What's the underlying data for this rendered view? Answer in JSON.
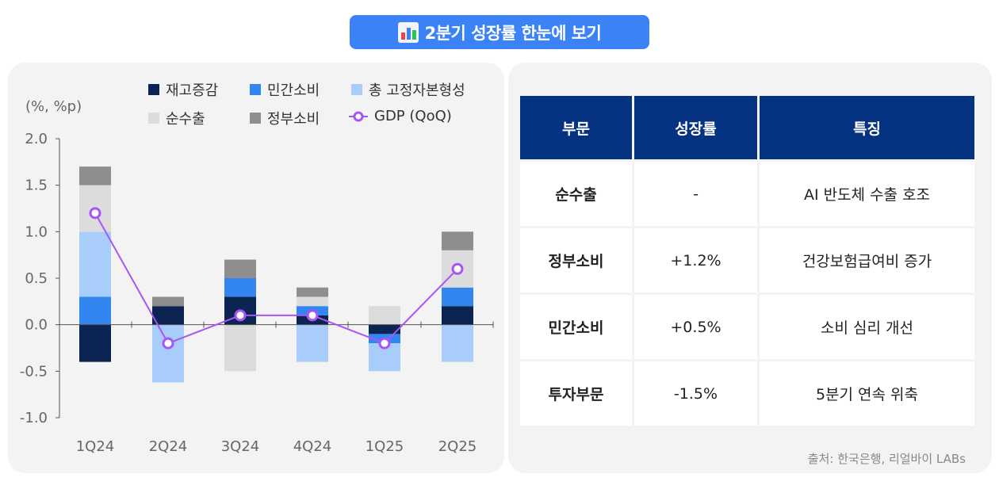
{
  "title": "2분기 성장률 한눈에 보기",
  "icon": "bar-chart-icon",
  "colors": {
    "title_bg": "#3b82f6",
    "table_header": "#053382",
    "inventory": "#0b2452",
    "private_consumption": "#3385f0",
    "fixed_capital": "#a9cdfb",
    "net_exports": "#dcdcdc",
    "government": "#8e8e8e",
    "gdp_line": "#a855f7"
  },
  "chart_data": {
    "type": "bar",
    "stacked": true,
    "unit_label": "(%, %p)",
    "categories": [
      "1Q24",
      "2Q24",
      "3Q24",
      "4Q24",
      "1Q25",
      "2Q25"
    ],
    "ylim": [
      -1.0,
      2.0
    ],
    "yticks": [
      "2.0",
      "1.5",
      "1.0",
      "0.5",
      "0.0",
      "-0.5",
      "-1.0"
    ],
    "series": [
      {
        "name": "재고증감",
        "values": [
          -0.4,
          0.2,
          0.3,
          0.1,
          -0.1,
          0.2
        ]
      },
      {
        "name": "민간소비",
        "values": [
          0.3,
          0.0,
          0.2,
          0.1,
          -0.1,
          0.2
        ]
      },
      {
        "name": "총 고정자본형성",
        "values": [
          0.7,
          -0.62,
          0.0,
          -0.4,
          -0.3,
          -0.4
        ]
      },
      {
        "name": "순수출",
        "values": [
          0.5,
          0.0,
          -0.5,
          0.1,
          0.2,
          0.4
        ]
      },
      {
        "name": "정부소비",
        "values": [
          0.2,
          0.1,
          0.2,
          0.1,
          0.0,
          0.2
        ]
      }
    ],
    "line": {
      "name": "GDP (QoQ)",
      "values": [
        1.2,
        -0.2,
        0.1,
        0.1,
        -0.2,
        0.6
      ]
    }
  },
  "table": {
    "headers": [
      "부문",
      "성장률",
      "특징"
    ],
    "rows": [
      [
        "순수출",
        "-",
        "AI 반도체 수출 호조"
      ],
      [
        "정부소비",
        "+1.2%",
        "건강보험급여비 증가"
      ],
      [
        "민간소비",
        "+0.5%",
        "소비 심리 개선"
      ],
      [
        "투자부문",
        "-1.5%",
        "5분기 연속 위축"
      ]
    ]
  },
  "source": "출처: 한국은행, 리얼바이 LABs"
}
